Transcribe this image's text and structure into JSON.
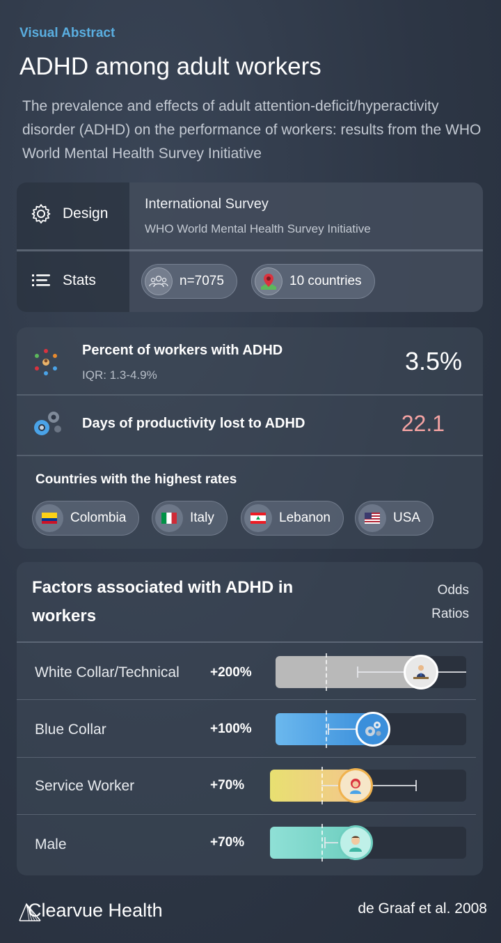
{
  "header": {
    "kicker": "Visual Abstract",
    "title": "ADHD among adult workers",
    "subtitle": "The prevalence and effects of adult attention-deficit/hyperactivity disorder (ADHD) on the performance of workers: results from the WHO World Mental Health Survey Initiative"
  },
  "design": {
    "label": "Design",
    "icon": "gear-outline-icon",
    "survey_title": "International Survey",
    "survey_subtitle": "WHO World Mental Health Survey Initiative"
  },
  "stats": {
    "label": "Stats",
    "icon": "list-icon",
    "sample": "n=7075",
    "countries": "10 countries"
  },
  "metrics": {
    "prevalence_title": "Percent of workers with ADHD",
    "prevalence_sub": "IQR: 1.3-4.9%",
    "prevalence_value": "3.5%",
    "days_title": "Days of productivity lost to ADHD",
    "days_value": "22.1",
    "days_color": "#f4a3a3"
  },
  "countries": {
    "title": "Countries with the highest rates",
    "items": [
      "Colombia",
      "Italy",
      "Lebanon",
      "USA"
    ]
  },
  "factors": {
    "title": "Factors associated with ADHD in workers",
    "or_label_1": "Odds",
    "or_label_2": "Ratios",
    "rows": [
      {
        "label": "White Collar/Technical",
        "pct": "+200%",
        "odds_ratio": 3.0,
        "color": "#b9b9b9"
      },
      {
        "label": "Blue Collar",
        "pct": "+100%",
        "odds_ratio": 2.0,
        "color": "#4aa3e8"
      },
      {
        "label": "Service Worker",
        "pct": "+70%",
        "odds_ratio": 1.7,
        "color": "#e9e27a"
      },
      {
        "label": "Male",
        "pct": "+70%",
        "odds_ratio": 1.7,
        "color": "#8fe0d6"
      }
    ]
  },
  "footer": {
    "logo": "Clearvue Health",
    "citation": "de Graaf et al. 2008"
  }
}
